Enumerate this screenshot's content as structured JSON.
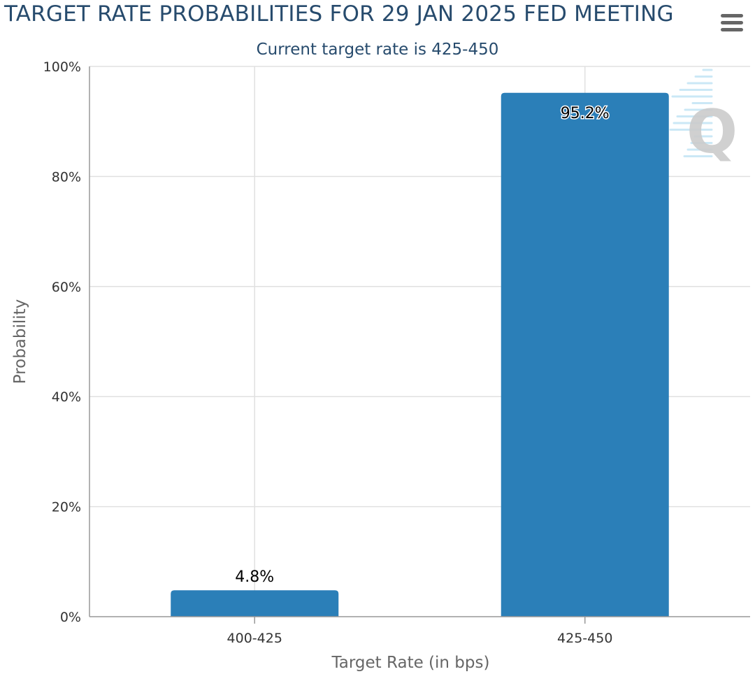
{
  "title": "TARGET RATE PROBABILITIES FOR 29 JAN 2025 FED MEETING",
  "subtitle": "Current target rate is 425-450",
  "menu_icon": "hamburger-menu-icon",
  "watermark_icon": "q-logo-icon",
  "colors": {
    "bar": "#2b7fb8",
    "title": "#274b6d",
    "grid": "#e0e0e0",
    "axis_title": "#666666"
  },
  "chart_data": {
    "type": "bar",
    "title": "TARGET RATE PROBABILITIES FOR 29 JAN 2025 FED MEETING",
    "subtitle": "Current target rate is 425-450",
    "categories": [
      "400-425",
      "425-450"
    ],
    "values": [
      4.8,
      95.2
    ],
    "data_labels": [
      "4.8%",
      "95.2%"
    ],
    "xlabel": "Target Rate (in bps)",
    "ylabel": "Probability",
    "ylim": [
      0,
      100
    ],
    "yticks": [
      0,
      20,
      40,
      60,
      80,
      100
    ],
    "ytick_labels": [
      "0%",
      "20%",
      "40%",
      "60%",
      "80%",
      "100%"
    ],
    "grid": true,
    "legend": "none"
  }
}
